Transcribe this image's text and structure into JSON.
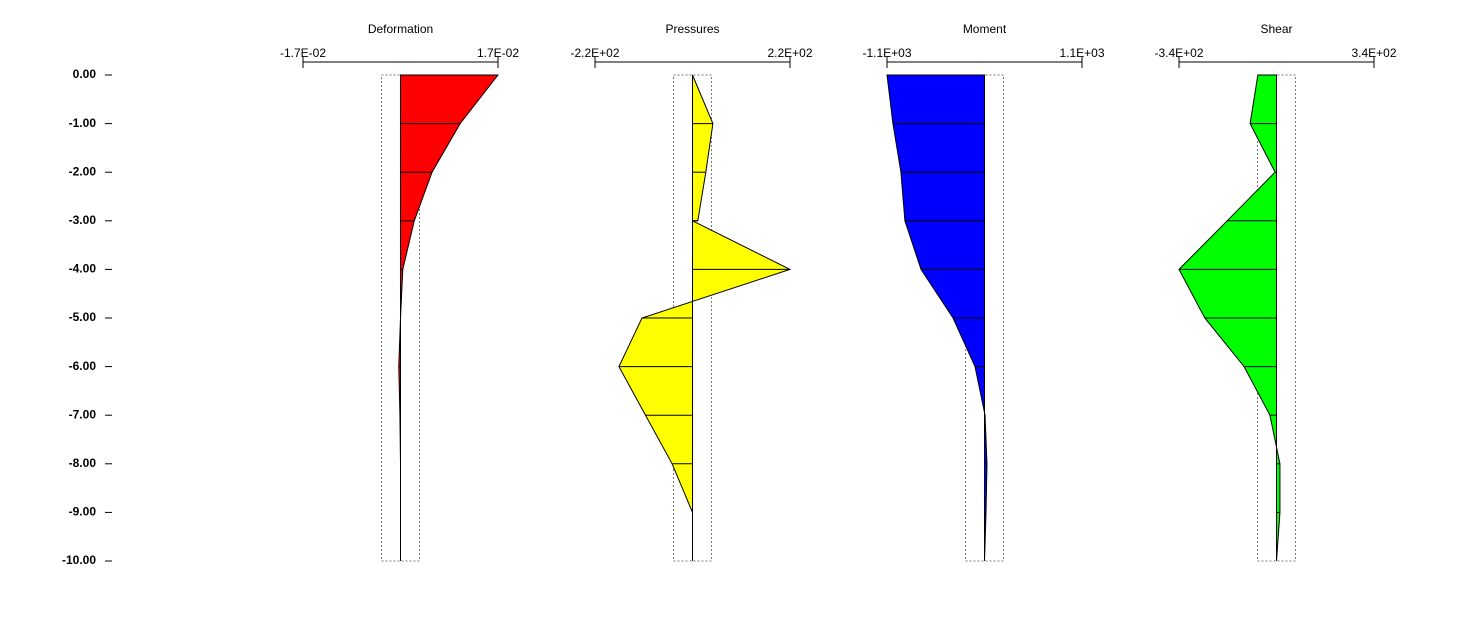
{
  "chart_data": [
    {
      "type": "area",
      "title": "Deformation",
      "color": "#ff0000",
      "xlim": [
        -0.017,
        0.017
      ],
      "xticks": [
        {
          "value": -0.017,
          "label": "-1.7E-02"
        },
        {
          "value": 0.017,
          "label": "1.7E-02"
        }
      ],
      "ylim": [
        -10,
        0
      ],
      "yticks": [
        {
          "value": 0,
          "label": "0.00"
        },
        {
          "value": -1,
          "label": "-1.00"
        },
        {
          "value": -2,
          "label": "-2.00"
        },
        {
          "value": -3,
          "label": "-3.00"
        },
        {
          "value": -4,
          "label": "-4.00"
        },
        {
          "value": -5,
          "label": "-5.00"
        },
        {
          "value": -6,
          "label": "-6.00"
        },
        {
          "value": -7,
          "label": "-7.00"
        },
        {
          "value": -8,
          "label": "-8.00"
        },
        {
          "value": -9,
          "label": "-9.00"
        },
        {
          "value": -10,
          "label": "-10.00"
        }
      ],
      "y": [
        0,
        -1,
        -2,
        -3,
        -4,
        -5,
        -6,
        -7,
        -8,
        -9,
        -10
      ],
      "values": [
        0.017,
        0.0104,
        0.0055,
        0.0024,
        0.0004,
        0,
        -0.0003,
        -0.0001,
        0,
        0,
        0
      ]
    },
    {
      "type": "area",
      "title": "Pressures",
      "color": "#ffff00",
      "xlim": [
        -220,
        220
      ],
      "xticks": [
        {
          "value": -220,
          "label": "-2.2E+02"
        },
        {
          "value": 220,
          "label": "2.2E+02"
        }
      ],
      "y": [
        0,
        -1,
        -2,
        -3,
        -3,
        -4,
        -5,
        -6,
        -7,
        -8,
        -9,
        -10
      ],
      "values": [
        0,
        46,
        30,
        12,
        0,
        220,
        -114,
        -166,
        -106,
        -46,
        0,
        0
      ]
    },
    {
      "type": "area",
      "title": "Moment",
      "color": "#0000ff",
      "xlim": [
        -1100,
        1100
      ],
      "xticks": [
        {
          "value": -1100,
          "label": "-1.1E+03"
        },
        {
          "value": 1100,
          "label": "1.1E+03"
        }
      ],
      "y": [
        0,
        -1,
        -2,
        -3,
        -4,
        -5,
        -6,
        -7,
        -8,
        -9,
        -10
      ],
      "values": [
        -1100,
        -1033,
        -943,
        -898,
        -716,
        -355,
        -107,
        6,
        28,
        17,
        0
      ]
    },
    {
      "type": "area",
      "title": "Shear",
      "color": "#00ff00",
      "xlim": [
        -340,
        340
      ],
      "xticks": [
        {
          "value": -340,
          "label": "-3.4E+02"
        },
        {
          "value": 340,
          "label": "3.4E+02"
        }
      ],
      "y": [
        0,
        -1,
        -2,
        -3,
        -4,
        -5,
        -6,
        -7,
        -8,
        -9,
        -10
      ],
      "values": [
        -65,
        -92,
        -5,
        -172,
        -340,
        -250,
        -113,
        -23,
        12,
        12,
        0
      ]
    }
  ]
}
